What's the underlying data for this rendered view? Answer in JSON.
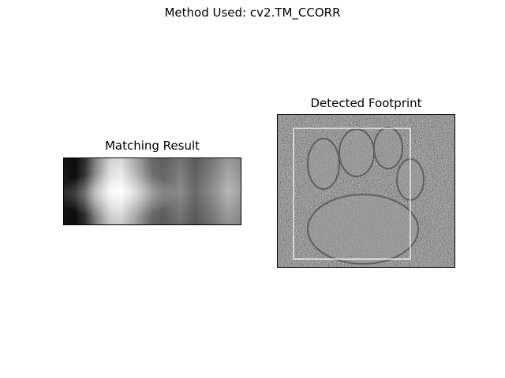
{
  "figure": {
    "suptitle": "Method Used: cv2.TM_CCORR"
  },
  "left_panel": {
    "title": "Matching Result",
    "colormap": "gray"
  },
  "right_panel": {
    "title": "Detected Footprint",
    "colormap": "gray",
    "box_color": "#ffffff"
  }
}
